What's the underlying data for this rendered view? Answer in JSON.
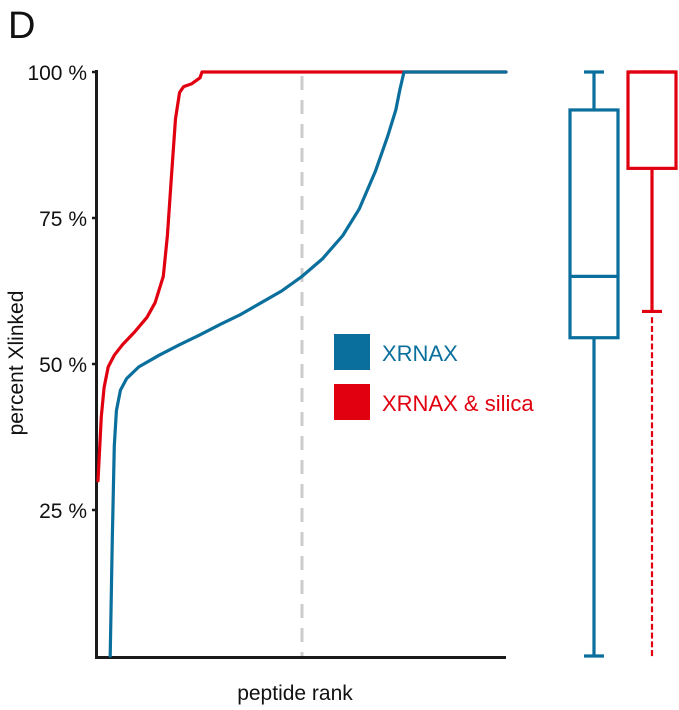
{
  "panel_label": "D",
  "colors": {
    "xrnax": "#0a6f9c",
    "silica": "#e1000f",
    "axis": "#1a1a1a",
    "median_rank": "#cccccc"
  },
  "chart_data": [
    {
      "type": "line",
      "title": "",
      "xlabel": "peptide rank",
      "ylabel": "percent Xlinked",
      "x_tick_labels": [],
      "y_tick_labels": [
        "25 %",
        "50 %",
        "75 %",
        "100 %"
      ],
      "y_ticks": [
        25,
        50,
        75,
        100
      ],
      "ylim": [
        0,
        100
      ],
      "xlim": [
        0,
        1
      ],
      "grid": false,
      "legend_position": "center-right",
      "median_rank_line_x": 0.5,
      "series": [
        {
          "name": "XRNAX",
          "color_key": "xrnax",
          "x": [
            0.03,
            0.035,
            0.04,
            0.045,
            0.055,
            0.07,
            0.1,
            0.15,
            0.2,
            0.25,
            0.3,
            0.35,
            0.4,
            0.45,
            0.5,
            0.55,
            0.6,
            0.64,
            0.68,
            0.71,
            0.73,
            0.74,
            0.75,
            1.0
          ],
          "y": [
            0,
            20,
            36,
            42,
            45.5,
            47.5,
            49.5,
            51.5,
            53.3,
            55,
            56.8,
            58.5,
            60.5,
            62.5,
            65,
            68,
            72,
            76.5,
            83,
            89,
            93.5,
            97,
            100,
            100
          ]
        },
        {
          "name": "XRNAX & silica",
          "color_key": "silica",
          "x": [
            0.0,
            0.008,
            0.015,
            0.025,
            0.04,
            0.06,
            0.09,
            0.12,
            0.14,
            0.16,
            0.17,
            0.18,
            0.19,
            0.2,
            0.21,
            0.23,
            0.25,
            0.255,
            0.27,
            1.0
          ],
          "y": [
            30,
            41,
            46,
            49.5,
            51.5,
            53.3,
            55.5,
            58,
            60.5,
            65,
            72,
            82,
            92,
            96.5,
            97.5,
            98,
            99,
            100,
            100,
            100
          ]
        }
      ]
    },
    {
      "type": "box",
      "ylim": [
        0,
        100
      ],
      "boxes": [
        {
          "name": "XRNAX",
          "color_key": "xrnax",
          "whisker_low": 0,
          "q1": 54.5,
          "median": 65,
          "q3": 93.5,
          "whisker_high": 100,
          "outliers": []
        },
        {
          "name": "XRNAX & silica",
          "color_key": "silica",
          "whisker_low": 59,
          "q1": 83.5,
          "median": 100,
          "q3": 100,
          "whisker_high": 100,
          "outliers": [
            57.5,
            56,
            54.5,
            53,
            51.5,
            50,
            48.5,
            47,
            45.5,
            44,
            42.5,
            41,
            39.5,
            38,
            36.5,
            35,
            33.5,
            32,
            30.5,
            29,
            27.5,
            26,
            24.5,
            23,
            21.5,
            20,
            18.5,
            17,
            15.5,
            14,
            12.5,
            11,
            9.5,
            8,
            6.5,
            5,
            3.5,
            2,
            0.5
          ]
        }
      ]
    }
  ]
}
